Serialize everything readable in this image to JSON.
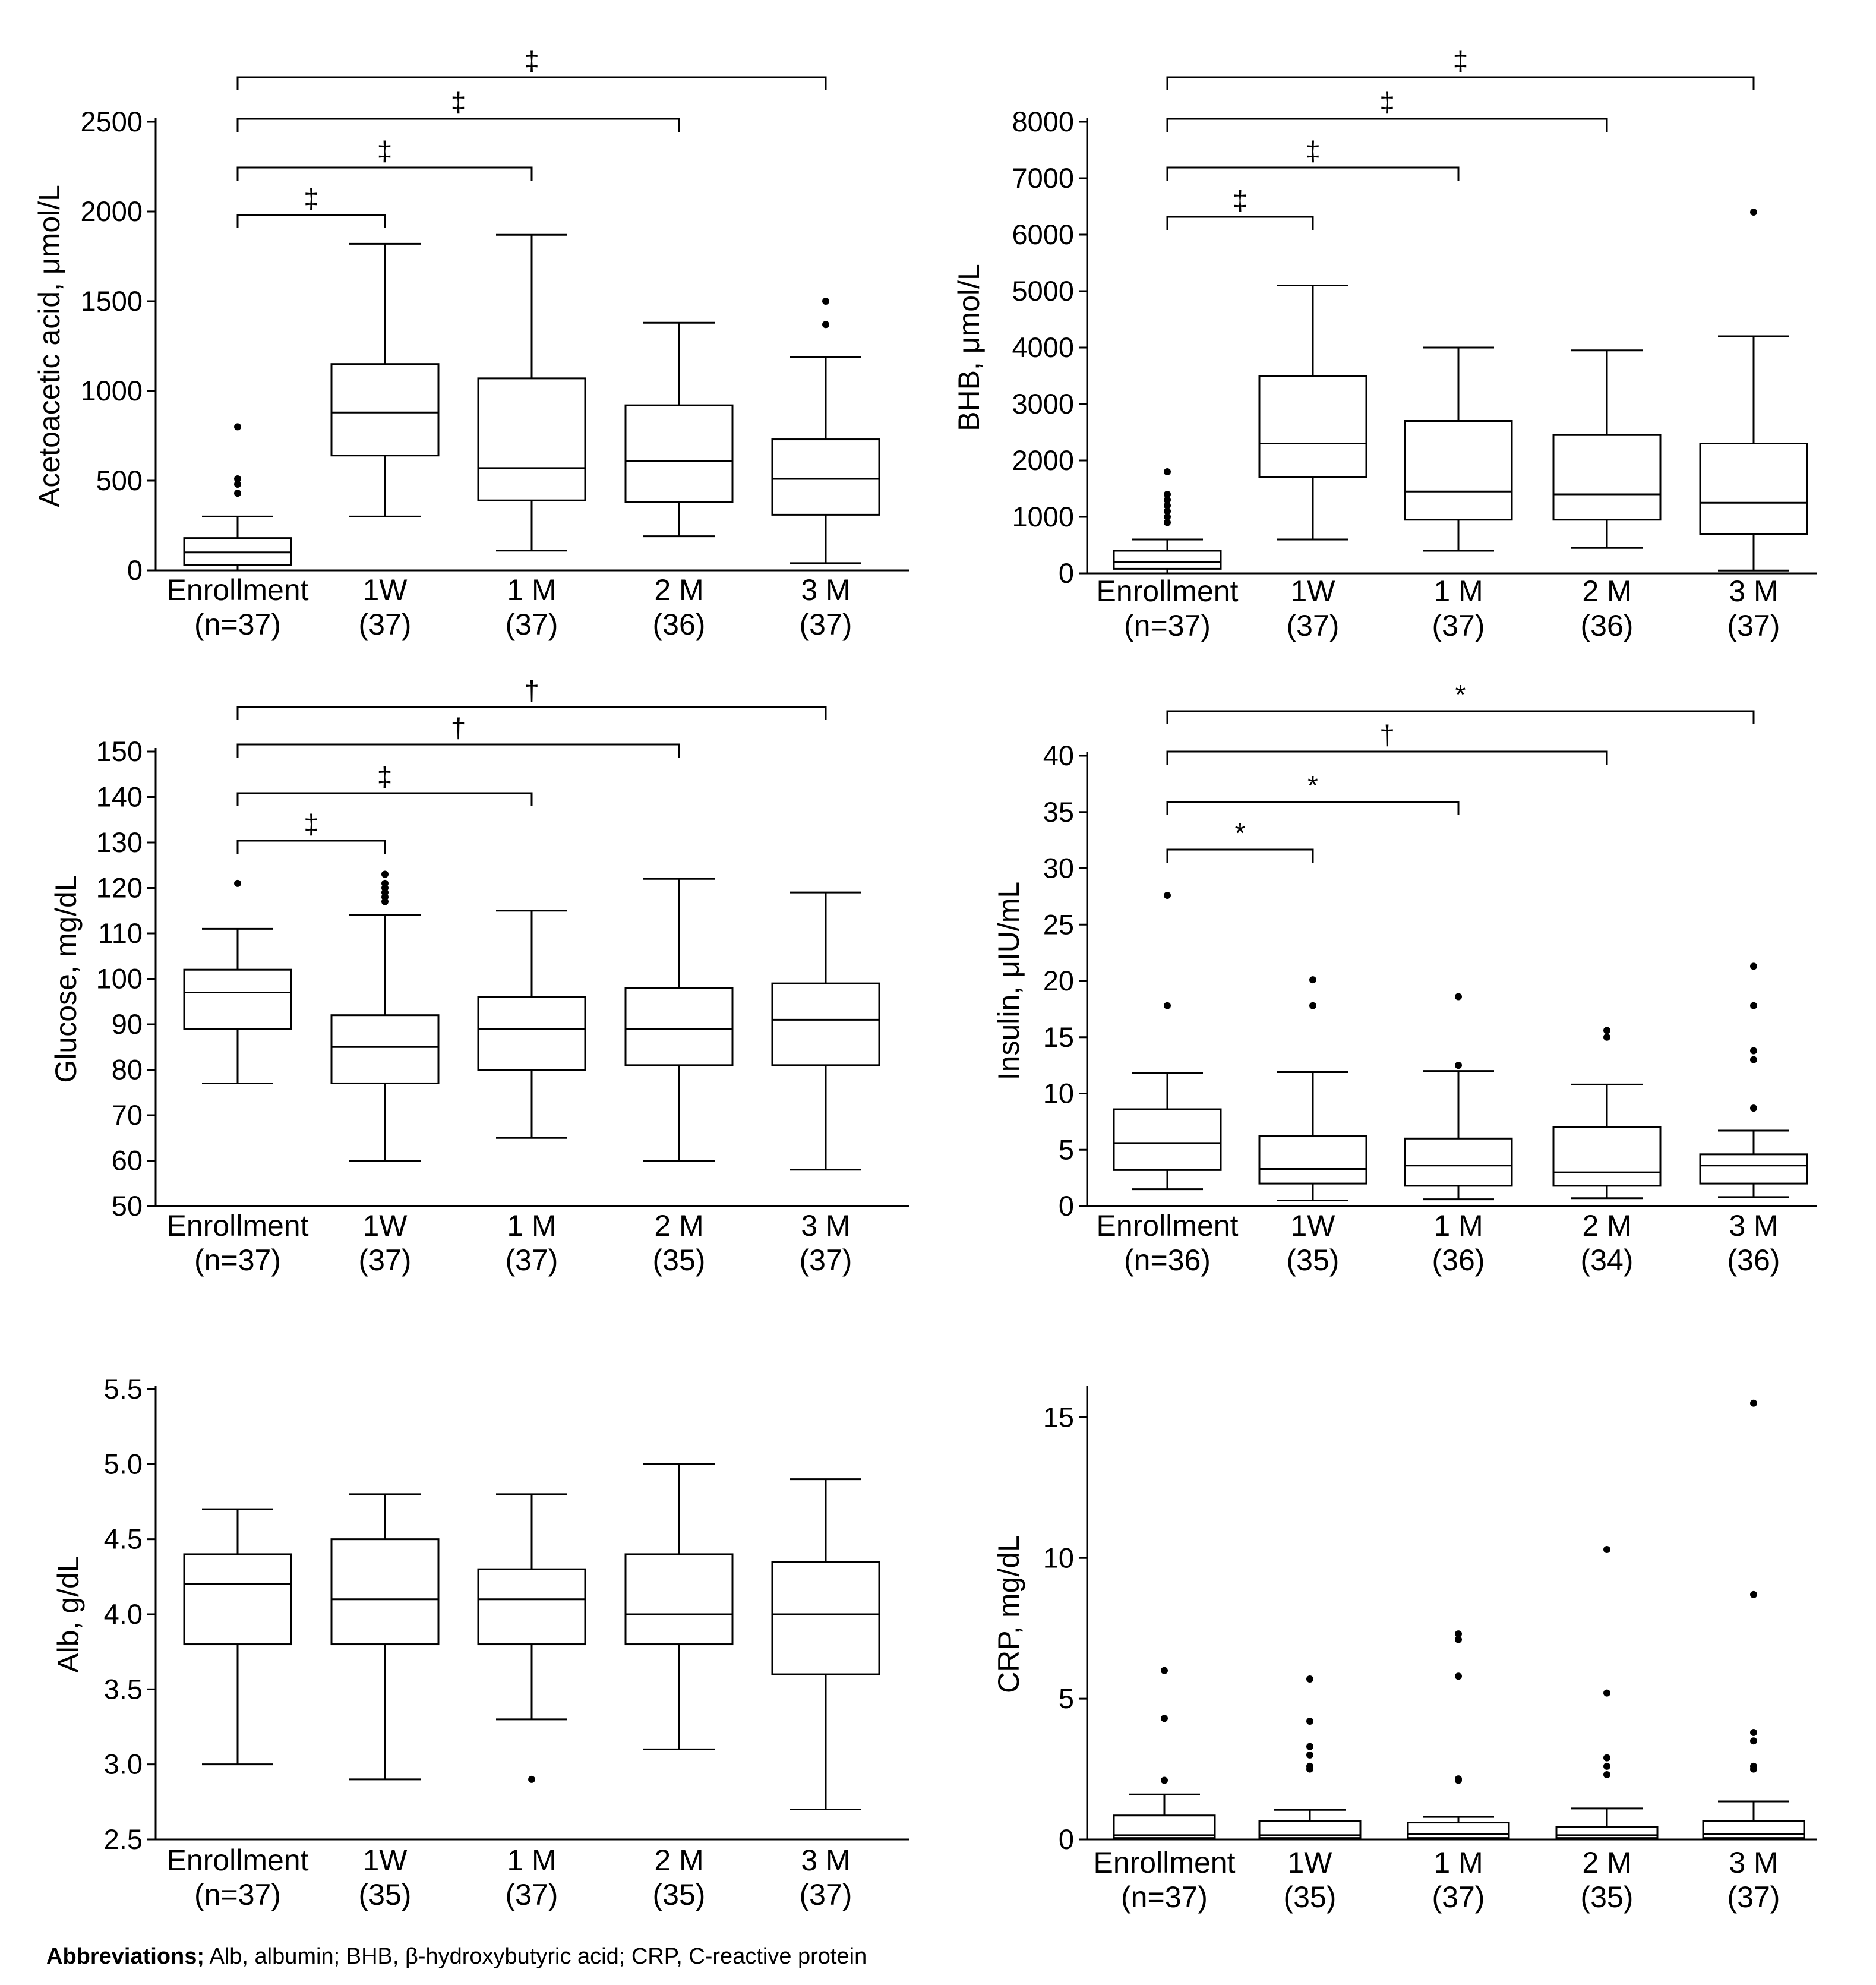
{
  "chart_data": [
    {
      "type": "box",
      "panel": "top-left",
      "ylabel": "Acetoacetic acid, μmol/L",
      "ylim": [
        0,
        2500
      ],
      "yticks": [
        0,
        500,
        1000,
        1500,
        2000,
        2500
      ],
      "categories": [
        "Enrollment",
        "1W",
        "1 M",
        "2 M",
        "3 M"
      ],
      "n_labels": [
        "(n=37)",
        "(37)",
        "(37)",
        "(36)",
        "(37)"
      ],
      "boxes": [
        {
          "whisker_low": 0,
          "q1": 30,
          "median": 100,
          "q3": 180,
          "whisker_high": 300,
          "outliers": [
            430,
            480,
            510,
            800
          ]
        },
        {
          "whisker_low": 300,
          "q1": 640,
          "median": 880,
          "q3": 1150,
          "whisker_high": 1820,
          "outliers": []
        },
        {
          "whisker_low": 110,
          "q1": 390,
          "median": 570,
          "q3": 1070,
          "whisker_high": 1870,
          "outliers": []
        },
        {
          "whisker_low": 190,
          "q1": 380,
          "median": 610,
          "q3": 920,
          "whisker_high": 1380,
          "outliers": []
        },
        {
          "whisker_low": 40,
          "q1": 310,
          "median": 510,
          "q3": 730,
          "whisker_high": 1190,
          "outliers": [
            1370,
            1500
          ]
        }
      ],
      "comparisons": [
        {
          "from": 0,
          "to": 1,
          "symbol": "‡"
        },
        {
          "from": 0,
          "to": 2,
          "symbol": "‡"
        },
        {
          "from": 0,
          "to": 3,
          "symbol": "‡"
        },
        {
          "from": 0,
          "to": 4,
          "symbol": "‡"
        }
      ]
    },
    {
      "type": "box",
      "panel": "top-right",
      "ylabel": "BHB, μmol/L",
      "ylim": [
        0,
        8000
      ],
      "yticks": [
        0,
        1000,
        2000,
        3000,
        4000,
        5000,
        6000,
        7000,
        8000
      ],
      "categories": [
        "Enrollment",
        "1W",
        "1 M",
        "2 M",
        "3 M"
      ],
      "n_labels": [
        "(n=37)",
        "(37)",
        "(37)",
        "(36)",
        "(37)"
      ],
      "boxes": [
        {
          "whisker_low": 0,
          "q1": 80,
          "median": 200,
          "q3": 400,
          "whisker_high": 600,
          "outliers": [
            900,
            1000,
            1100,
            1200,
            1300,
            1400,
            1800
          ]
        },
        {
          "whisker_low": 600,
          "q1": 1700,
          "median": 2300,
          "q3": 3500,
          "whisker_high": 5100,
          "outliers": []
        },
        {
          "whisker_low": 400,
          "q1": 950,
          "median": 1450,
          "q3": 2700,
          "whisker_high": 4000,
          "outliers": []
        },
        {
          "whisker_low": 450,
          "q1": 950,
          "median": 1400,
          "q3": 2450,
          "whisker_high": 3950,
          "outliers": []
        },
        {
          "whisker_low": 50,
          "q1": 700,
          "median": 1250,
          "q3": 2300,
          "whisker_high": 4200,
          "outliers": [
            6400
          ]
        }
      ],
      "comparisons": [
        {
          "from": 0,
          "to": 1,
          "symbol": "‡"
        },
        {
          "from": 0,
          "to": 2,
          "symbol": "‡"
        },
        {
          "from": 0,
          "to": 3,
          "symbol": "‡"
        },
        {
          "from": 0,
          "to": 4,
          "symbol": "‡"
        }
      ]
    },
    {
      "type": "box",
      "panel": "middle-left",
      "ylabel": "Glucose, mg/dL",
      "ylim": [
        50,
        150
      ],
      "yticks": [
        50,
        60,
        70,
        80,
        90,
        100,
        110,
        120,
        130,
        140,
        150
      ],
      "categories": [
        "Enrollment",
        "1W",
        "1 M",
        "2 M",
        "3 M"
      ],
      "n_labels": [
        "(n=37)",
        "(37)",
        "(37)",
        "(35)",
        "(37)"
      ],
      "boxes": [
        {
          "whisker_low": 77,
          "q1": 89,
          "median": 97,
          "q3": 102,
          "whisker_high": 111,
          "outliers": [
            121
          ]
        },
        {
          "whisker_low": 60,
          "q1": 77,
          "median": 85,
          "q3": 92,
          "whisker_high": 114,
          "outliers": [
            117,
            118,
            119,
            120,
            121,
            123
          ]
        },
        {
          "whisker_low": 65,
          "q1": 80,
          "median": 89,
          "q3": 96,
          "whisker_high": 115,
          "outliers": []
        },
        {
          "whisker_low": 60,
          "q1": 81,
          "median": 89,
          "q3": 98,
          "whisker_high": 122,
          "outliers": []
        },
        {
          "whisker_low": 58,
          "q1": 81,
          "median": 91,
          "q3": 99,
          "whisker_high": 119,
          "outliers": []
        }
      ],
      "comparisons": [
        {
          "from": 0,
          "to": 1,
          "symbol": "‡"
        },
        {
          "from": 0,
          "to": 2,
          "symbol": "‡"
        },
        {
          "from": 0,
          "to": 3,
          "symbol": "†"
        },
        {
          "from": 0,
          "to": 4,
          "symbol": "†"
        }
      ]
    },
    {
      "type": "box",
      "panel": "middle-right",
      "ylabel": "Insulin, μIU/mL",
      "ylim": [
        0,
        40
      ],
      "yticks": [
        0,
        5,
        10,
        15,
        20,
        25,
        30,
        35,
        40
      ],
      "categories": [
        "Enrollment",
        "1W",
        "1 M",
        "2 M",
        "3 M"
      ],
      "n_labels": [
        "(n=36)",
        "(35)",
        "(36)",
        "(34)",
        "(36)"
      ],
      "boxes": [
        {
          "whisker_low": 1.5,
          "q1": 3.2,
          "median": 5.6,
          "q3": 8.6,
          "whisker_high": 11.8,
          "outliers": [
            17.8,
            27.6
          ]
        },
        {
          "whisker_low": 0.5,
          "q1": 2.0,
          "median": 3.3,
          "q3": 6.2,
          "whisker_high": 11.9,
          "outliers": [
            17.8,
            20.1
          ]
        },
        {
          "whisker_low": 0.6,
          "q1": 1.8,
          "median": 3.6,
          "q3": 6.0,
          "whisker_high": 12.0,
          "outliers": [
            12.5,
            18.6
          ]
        },
        {
          "whisker_low": 0.7,
          "q1": 1.8,
          "median": 3.0,
          "q3": 7.0,
          "whisker_high": 10.8,
          "outliers": [
            15.0,
            15.6
          ]
        },
        {
          "whisker_low": 0.8,
          "q1": 2.0,
          "median": 3.6,
          "q3": 4.6,
          "whisker_high": 6.7,
          "outliers": [
            8.7,
            13.0,
            13.8,
            17.8,
            21.3
          ]
        }
      ],
      "comparisons": [
        {
          "from": 0,
          "to": 1,
          "symbol": "*"
        },
        {
          "from": 0,
          "to": 2,
          "symbol": "*"
        },
        {
          "from": 0,
          "to": 3,
          "symbol": "†"
        },
        {
          "from": 0,
          "to": 4,
          "symbol": "*"
        }
      ]
    },
    {
      "type": "box",
      "panel": "bottom-left",
      "ylabel": "Alb, g/dL",
      "ylim": [
        2.5,
        5.5
      ],
      "yticks": [
        2.5,
        3.0,
        3.5,
        4.0,
        4.5,
        5.0,
        5.5
      ],
      "tick_decimals": 1,
      "categories": [
        "Enrollment",
        "1W",
        "1 M",
        "2 M",
        "3 M"
      ],
      "n_labels": [
        "(n=37)",
        "(35)",
        "(37)",
        "(35)",
        "(37)"
      ],
      "boxes": [
        {
          "whisker_low": 3.0,
          "q1": 3.8,
          "median": 4.2,
          "q3": 4.4,
          "whisker_high": 4.7,
          "outliers": []
        },
        {
          "whisker_low": 2.9,
          "q1": 3.8,
          "median": 4.1,
          "q3": 4.5,
          "whisker_high": 4.8,
          "outliers": []
        },
        {
          "whisker_low": 3.3,
          "q1": 3.8,
          "median": 4.1,
          "q3": 4.3,
          "whisker_high": 4.8,
          "outliers": [
            2.9
          ]
        },
        {
          "whisker_low": 3.1,
          "q1": 3.8,
          "median": 4.0,
          "q3": 4.4,
          "whisker_high": 5.0,
          "outliers": []
        },
        {
          "whisker_low": 2.7,
          "q1": 3.6,
          "median": 4.0,
          "q3": 4.35,
          "whisker_high": 4.9,
          "outliers": []
        }
      ],
      "comparisons": []
    },
    {
      "type": "box",
      "panel": "bottom-right",
      "ylabel": "CRP, mg/dL",
      "ylim": [
        0,
        16
      ],
      "yticks": [
        0,
        5,
        10,
        15
      ],
      "categories": [
        "Enrollment",
        "1W",
        "1 M",
        "2 M",
        "3 M"
      ],
      "n_labels": [
        "(n=37)",
        "(35)",
        "(37)",
        "(35)",
        "(37)"
      ],
      "boxes": [
        {
          "whisker_low": 0,
          "q1": 0.05,
          "median": 0.15,
          "q3": 0.85,
          "whisker_high": 1.6,
          "outliers": [
            2.1,
            4.3,
            6.0
          ]
        },
        {
          "whisker_low": 0,
          "q1": 0.05,
          "median": 0.15,
          "q3": 0.65,
          "whisker_high": 1.05,
          "outliers": [
            2.5,
            2.6,
            3.0,
            3.3,
            4.2,
            5.7
          ]
        },
        {
          "whisker_low": 0,
          "q1": 0.05,
          "median": 0.2,
          "q3": 0.6,
          "whisker_high": 0.8,
          "outliers": [
            2.1,
            2.15,
            5.8,
            7.1,
            7.3
          ]
        },
        {
          "whisker_low": 0,
          "q1": 0.05,
          "median": 0.15,
          "q3": 0.45,
          "whisker_high": 1.1,
          "outliers": [
            2.3,
            2.6,
            2.9,
            5.2,
            10.3
          ]
        },
        {
          "whisker_low": 0,
          "q1": 0.05,
          "median": 0.2,
          "q3": 0.65,
          "whisker_high": 1.35,
          "outliers": [
            2.5,
            2.6,
            3.5,
            3.8,
            8.7,
            15.5
          ]
        }
      ],
      "comparisons": []
    }
  ],
  "footnote": {
    "bold": "Abbreviations;",
    "text": " Alb, albumin; BHB, β-hydroxybutyric acid; CRP, C-reactive protein"
  }
}
